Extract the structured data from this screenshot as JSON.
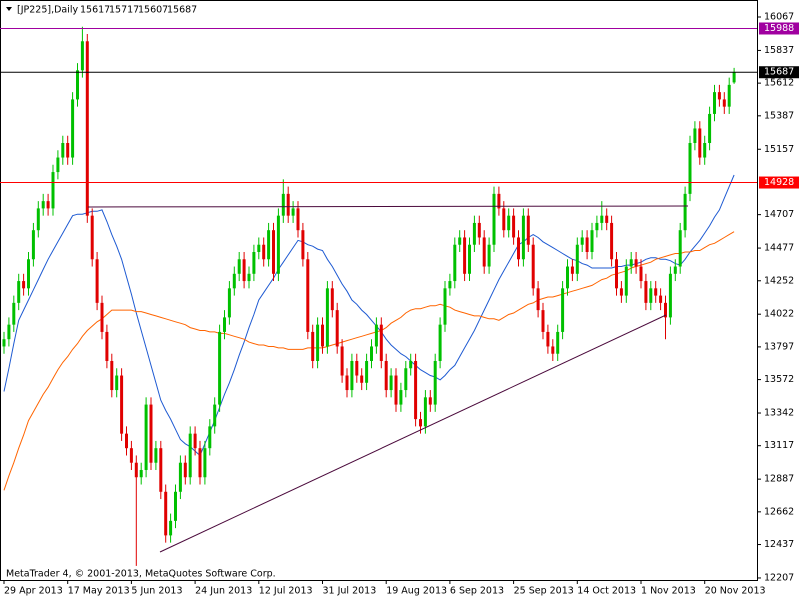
{
  "chart_data": {
    "type": "candlestick",
    "title": "[JP225],Daily",
    "header_values": [
      15617,
      15717,
      15607,
      15687
    ],
    "footer": "MetaTrader 4, © 2001-2013, MetaQuotes Software Corp.",
    "up_color": "#00c000",
    "down_color": "#e00000",
    "ylim": [
      12193,
      16184
    ],
    "yticks": [
      16067,
      15837,
      15612,
      15387,
      15157,
      14707,
      14477,
      14252,
      14022,
      13797,
      13572,
      13342,
      13117,
      12887,
      12662,
      12437,
      12207
    ],
    "levels": [
      {
        "value": 15988,
        "color": "#a000a0"
      },
      {
        "value": 15687,
        "color": "#000000"
      },
      {
        "value": 14928,
        "color": "#ff0000"
      }
    ],
    "categories": [
      "29 Apr 2013",
      null,
      null,
      null,
      null,
      null,
      null,
      null,
      null,
      null,
      null,
      null,
      null,
      "17 May 2013",
      null,
      null,
      null,
      null,
      null,
      null,
      null,
      null,
      null,
      null,
      null,
      null,
      "5 Jun 2013",
      null,
      null,
      null,
      null,
      null,
      null,
      null,
      null,
      null,
      null,
      null,
      null,
      "24 Jun 2013",
      null,
      null,
      null,
      null,
      null,
      null,
      null,
      null,
      null,
      null,
      null,
      null,
      "12 Jul 2013",
      null,
      null,
      null,
      null,
      null,
      null,
      null,
      null,
      null,
      null,
      null,
      null,
      "31 Jul 2013",
      null,
      null,
      null,
      null,
      null,
      null,
      null,
      null,
      null,
      null,
      null,
      null,
      "19 Aug 2013",
      null,
      null,
      null,
      null,
      null,
      null,
      null,
      null,
      null,
      null,
      null,
      null,
      "6 Sep 2013",
      null,
      null,
      null,
      null,
      null,
      null,
      null,
      null,
      null,
      null,
      null,
      null,
      "25 Sep 2013",
      null,
      null,
      null,
      null,
      null,
      null,
      null,
      null,
      null,
      null,
      null,
      null,
      "14 Oct 2013",
      null,
      null,
      null,
      null,
      null,
      null,
      null,
      null,
      null,
      null,
      null,
      null,
      "1 Nov 2013",
      null,
      null,
      null,
      null,
      null,
      null,
      null,
      null,
      null,
      null,
      null,
      null,
      "20 Nov 2013",
      null,
      null,
      null,
      null,
      null,
      null
    ],
    "ohlc": [
      [
        13800,
        13900,
        13750,
        13850
      ],
      [
        13850,
        14000,
        13800,
        13950
      ],
      [
        13950,
        14150,
        13900,
        14100
      ],
      [
        14100,
        14300,
        14050,
        14250
      ],
      [
        14250,
        14300,
        14150,
        14200
      ],
      [
        14200,
        14450,
        14150,
        14400
      ],
      [
        14400,
        14650,
        14350,
        14600
      ],
      [
        14600,
        14800,
        14550,
        14750
      ],
      [
        14750,
        14850,
        14700,
        14800
      ],
      [
        14800,
        14850,
        14700,
        14750
      ],
      [
        14750,
        15050,
        14700,
        15000
      ],
      [
        15000,
        15150,
        14950,
        15100
      ],
      [
        15100,
        15250,
        15050,
        15200
      ],
      [
        15200,
        15250,
        15050,
        15100
      ],
      [
        15100,
        15550,
        15050,
        15500
      ],
      [
        15500,
        15750,
        15450,
        15700
      ],
      [
        15700,
        16000,
        15650,
        15900
      ],
      [
        15900,
        15950,
        14650,
        14700
      ],
      [
        14700,
        14750,
        14350,
        14400
      ],
      [
        14400,
        14450,
        14050,
        14100
      ],
      [
        14100,
        14150,
        13850,
        13900
      ],
      [
        13900,
        13950,
        13650,
        13700
      ],
      [
        13700,
        13750,
        13450,
        13500
      ],
      [
        13500,
        13650,
        13450,
        13600
      ],
      [
        13600,
        13650,
        13150,
        13200
      ],
      [
        13200,
        13250,
        13050,
        13100
      ],
      [
        13100,
        13150,
        12950,
        13000
      ],
      [
        13000,
        13050,
        12290,
        12900
      ],
      [
        12900,
        13000,
        12850,
        12950
      ],
      [
        12950,
        13450,
        12900,
        13400
      ],
      [
        13400,
        13450,
        12950,
        13000
      ],
      [
        13000,
        13150,
        12950,
        13100
      ],
      [
        13100,
        13150,
        12750,
        12800
      ],
      [
        12800,
        12850,
        12450,
        12500
      ],
      [
        12500,
        12650,
        12450,
        12600
      ],
      [
        12600,
        12850,
        12550,
        12800
      ],
      [
        12800,
        13050,
        12750,
        13000
      ],
      [
        13000,
        13050,
        12850,
        12900
      ],
      [
        12900,
        13250,
        12850,
        13200
      ],
      [
        13200,
        13250,
        13050,
        13100
      ],
      [
        13100,
        13150,
        12850,
        12900
      ],
      [
        12900,
        13150,
        12850,
        13100
      ],
      [
        13100,
        13300,
        13050,
        13250
      ],
      [
        13250,
        13450,
        13200,
        13400
      ],
      [
        13400,
        13950,
        13350,
        13900
      ],
      [
        13900,
        14050,
        13850,
        14000
      ],
      [
        14000,
        14250,
        13950,
        14200
      ],
      [
        14200,
        14350,
        14150,
        14300
      ],
      [
        14300,
        14450,
        14250,
        14400
      ],
      [
        14400,
        14450,
        14200,
        14250
      ],
      [
        14250,
        14350,
        14200,
        14300
      ],
      [
        14300,
        14500,
        14250,
        14450
      ],
      [
        14450,
        14550,
        14400,
        14500
      ],
      [
        14500,
        14550,
        14350,
        14400
      ],
      [
        14400,
        14650,
        14350,
        14600
      ],
      [
        14600,
        14650,
        14250,
        14300
      ],
      [
        14300,
        14750,
        14250,
        14700
      ],
      [
        14700,
        14950,
        14650,
        14850
      ],
      [
        14850,
        14900,
        14650,
        14700
      ],
      [
        14700,
        14800,
        14650,
        14750
      ],
      [
        14750,
        14800,
        14550,
        14600
      ],
      [
        14600,
        14650,
        14350,
        14400
      ],
      [
        14400,
        14450,
        13850,
        13900
      ],
      [
        13900,
        13950,
        13650,
        13700
      ],
      [
        13700,
        14000,
        13650,
        13950
      ],
      [
        13950,
        14000,
        13750,
        13800
      ],
      [
        13800,
        14250,
        13750,
        14200
      ],
      [
        14200,
        14250,
        14000,
        14050
      ],
      [
        14050,
        14100,
        13750,
        13800
      ],
      [
        13800,
        13850,
        13550,
        13600
      ],
      [
        13600,
        13650,
        13450,
        13500
      ],
      [
        13500,
        13750,
        13450,
        13700
      ],
      [
        13700,
        13750,
        13550,
        13600
      ],
      [
        13600,
        13650,
        13500,
        13550
      ],
      [
        13550,
        13750,
        13500,
        13700
      ],
      [
        13700,
        13850,
        13650,
        13800
      ],
      [
        13800,
        14000,
        13750,
        13950
      ],
      [
        13950,
        14000,
        13650,
        13700
      ],
      [
        13700,
        13750,
        13450,
        13500
      ],
      [
        13500,
        13650,
        13450,
        13600
      ],
      [
        13600,
        13650,
        13350,
        13400
      ],
      [
        13400,
        13550,
        13350,
        13500
      ],
      [
        13500,
        13700,
        13450,
        13650
      ],
      [
        13650,
        13750,
        13600,
        13700
      ],
      [
        13700,
        13750,
        13250,
        13300
      ],
      [
        13300,
        13350,
        13200,
        13250
      ],
      [
        13250,
        13500,
        13200,
        13450
      ],
      [
        13450,
        13500,
        13350,
        13400
      ],
      [
        13400,
        13750,
        13350,
        13700
      ],
      [
        13700,
        14000,
        13650,
        13950
      ],
      [
        13950,
        14250,
        13900,
        14200
      ],
      [
        14200,
        14300,
        14150,
        14250
      ],
      [
        14250,
        14550,
        14200,
        14500
      ],
      [
        14500,
        14600,
        14450,
        14550
      ],
      [
        14550,
        14600,
        14250,
        14300
      ],
      [
        14300,
        14550,
        14250,
        14500
      ],
      [
        14500,
        14700,
        14450,
        14650
      ],
      [
        14650,
        14700,
        14500,
        14550
      ],
      [
        14550,
        14600,
        14300,
        14350
      ],
      [
        14350,
        14550,
        14300,
        14500
      ],
      [
        14500,
        14900,
        14450,
        14850
      ],
      [
        14850,
        14900,
        14700,
        14750
      ],
      [
        14750,
        14800,
        14550,
        14600
      ],
      [
        14600,
        14750,
        14550,
        14700
      ],
      [
        14700,
        14750,
        14500,
        14550
      ],
      [
        14550,
        14600,
        14350,
        14400
      ],
      [
        14400,
        14750,
        14350,
        14700
      ],
      [
        14700,
        14750,
        14450,
        14500
      ],
      [
        14500,
        14550,
        14150,
        14200
      ],
      [
        14200,
        14250,
        14000,
        14050
      ],
      [
        14050,
        14100,
        13850,
        13900
      ],
      [
        13900,
        13950,
        13750,
        13800
      ],
      [
        13800,
        13850,
        13700,
        13750
      ],
      [
        13750,
        13950,
        13700,
        13900
      ],
      [
        13900,
        14250,
        13850,
        14200
      ],
      [
        14200,
        14400,
        14150,
        14350
      ],
      [
        14350,
        14400,
        14250,
        14300
      ],
      [
        14300,
        14550,
        14250,
        14500
      ],
      [
        14500,
        14600,
        14450,
        14550
      ],
      [
        14550,
        14600,
        14400,
        14450
      ],
      [
        14450,
        14650,
        14400,
        14600
      ],
      [
        14600,
        14700,
        14550,
        14650
      ],
      [
        14650,
        14800,
        14600,
        14700
      ],
      [
        14700,
        14750,
        14600,
        14650
      ],
      [
        14650,
        14700,
        14350,
        14400
      ],
      [
        14400,
        14450,
        14150,
        14200
      ],
      [
        14200,
        14250,
        14100,
        14150
      ],
      [
        14150,
        14400,
        14100,
        14350
      ],
      [
        14350,
        14450,
        14300,
        14400
      ],
      [
        14400,
        14450,
        14300,
        14350
      ],
      [
        14350,
        14400,
        14200,
        14250
      ],
      [
        14250,
        14300,
        14050,
        14100
      ],
      [
        14100,
        14250,
        14050,
        14200
      ],
      [
        14200,
        14250,
        14100,
        14150
      ],
      [
        14150,
        14200,
        14050,
        14100
      ],
      [
        14100,
        14150,
        13850,
        14000
      ],
      [
        14000,
        14350,
        13950,
        14300
      ],
      [
        14300,
        14400,
        14250,
        14350
      ],
      [
        14350,
        14650,
        14300,
        14600
      ],
      [
        14600,
        14900,
        14550,
        14850
      ],
      [
        14850,
        15250,
        14800,
        15200
      ],
      [
        15200,
        15350,
        15150,
        15300
      ],
      [
        15300,
        15350,
        15050,
        15100
      ],
      [
        15100,
        15250,
        15050,
        15200
      ],
      [
        15200,
        15450,
        15150,
        15400
      ],
      [
        15400,
        15600,
        15350,
        15550
      ],
      [
        15550,
        15600,
        15450,
        15500
      ],
      [
        15500,
        15550,
        15400,
        15450
      ],
      [
        15450,
        15650,
        15400,
        15600
      ],
      [
        15617,
        15717,
        15607,
        15687
      ]
    ],
    "moving_averages": [
      {
        "color": "#1e5ad2",
        "values": [
          13490,
          13650,
          13820,
          13980,
          14050,
          14120,
          14190,
          14260,
          14330,
          14400,
          14460,
          14520,
          14580,
          14640,
          14700,
          14710,
          14710,
          14720,
          14730,
          14730,
          14740,
          14660,
          14570,
          14490,
          14400,
          14280,
          14160,
          14030,
          13910,
          13790,
          13670,
          13550,
          13430,
          13360,
          13300,
          13230,
          13160,
          13130,
          13110,
          13080,
          13050,
          13130,
          13210,
          13290,
          13380,
          13470,
          13550,
          13640,
          13740,
          13830,
          13930,
          14020,
          14120,
          14170,
          14220,
          14270,
          14330,
          14380,
          14430,
          14480,
          14530,
          14520,
          14500,
          14490,
          14470,
          14460,
          14400,
          14350,
          14290,
          14230,
          14180,
          14120,
          14090,
          14050,
          14020,
          13980,
          13940,
          13900,
          13850,
          13810,
          13780,
          13750,
          13730,
          13700,
          13670,
          13640,
          13620,
          13600,
          13590,
          13570,
          13600,
          13640,
          13670,
          13730,
          13790,
          13850,
          13910,
          13980,
          14050,
          14120,
          14190,
          14260,
          14320,
          14380,
          14440,
          14500,
          14520,
          14550,
          14570,
          14550,
          14520,
          14500,
          14480,
          14460,
          14440,
          14420,
          14400,
          14390,
          14370,
          14360,
          14340,
          14340,
          14340,
          14340,
          14340,
          14350,
          14350,
          14360,
          14360,
          14370,
          14380,
          14400,
          14410,
          14410,
          14400,
          14400,
          14390,
          14370,
          14360,
          14400,
          14450,
          14490,
          14530,
          14580,
          14630,
          14690,
          14740,
          14820,
          14900,
          14980
        ]
      },
      {
        "color": "#ff6400",
        "values": [
          12810,
          12910,
          13000,
          13100,
          13190,
          13290,
          13350,
          13410,
          13470,
          13520,
          13580,
          13640,
          13690,
          13730,
          13780,
          13820,
          13870,
          13910,
          13940,
          13970,
          13990,
          14020,
          14050,
          14050,
          14050,
          14050,
          14050,
          14040,
          14040,
          14030,
          14020,
          14010,
          14000,
          13990,
          13980,
          13970,
          13960,
          13950,
          13930,
          13920,
          13910,
          13910,
          13900,
          13900,
          13890,
          13890,
          13880,
          13870,
          13860,
          13850,
          13830,
          13820,
          13810,
          13810,
          13800,
          13800,
          13790,
          13790,
          13780,
          13780,
          13780,
          13780,
          13790,
          13790,
          13790,
          13790,
          13800,
          13810,
          13820,
          13830,
          13840,
          13850,
          13860,
          13870,
          13880,
          13890,
          13900,
          13910,
          13930,
          13960,
          13980,
          14000,
          14030,
          14050,
          14060,
          14060,
          14070,
          14080,
          14080,
          14090,
          14080,
          14070,
          14050,
          14040,
          14030,
          14020,
          14010,
          14010,
          14000,
          13990,
          13990,
          13980,
          14000,
          14020,
          14030,
          14050,
          14070,
          14090,
          14100,
          14120,
          14130,
          14140,
          14140,
          14150,
          14160,
          14170,
          14180,
          14190,
          14200,
          14210,
          14220,
          14240,
          14260,
          14270,
          14290,
          14300,
          14310,
          14320,
          14340,
          14350,
          14360,
          14370,
          14380,
          14400,
          14410,
          14420,
          14430,
          14440,
          14440,
          14450,
          14450,
          14460,
          14460,
          14480,
          14500,
          14510,
          14530,
          14550,
          14570,
          14590
        ]
      }
    ]
  }
}
